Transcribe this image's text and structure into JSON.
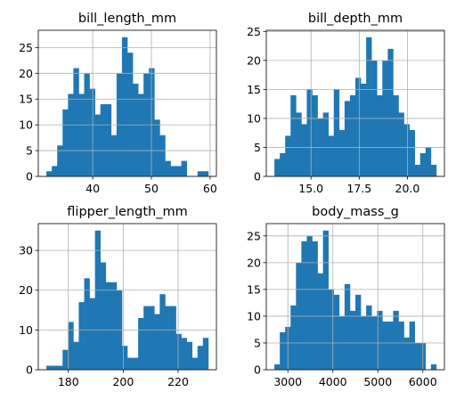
{
  "chart_data": [
    {
      "type": "bar",
      "title": "bill_length_mm",
      "bin_edges": [
        32.1,
        33.02,
        33.94,
        34.86,
        35.78,
        36.7,
        37.62,
        38.54,
        39.46,
        40.38,
        41.3,
        42.22,
        43.14,
        44.06,
        44.98,
        45.9,
        46.82,
        47.74,
        48.66,
        49.58,
        50.5,
        51.42,
        52.34,
        53.26,
        54.18,
        55.1,
        56.02,
        56.94,
        57.86,
        58.78,
        59.7
      ],
      "counts": [
        1,
        2,
        6,
        13,
        16,
        21,
        16,
        20,
        17,
        12,
        14,
        14,
        8,
        20,
        27,
        24,
        18,
        16,
        20,
        21,
        11,
        8,
        3,
        2,
        2,
        3,
        0,
        0,
        1,
        1
      ],
      "xticks": [
        40,
        50,
        60
      ],
      "yticks": [
        0,
        5,
        10,
        15,
        20,
        25
      ],
      "xlim": [
        30.72,
        61.08
      ],
      "ylim": [
        0,
        28.35
      ],
      "grid": true,
      "color": "#1f77b4"
    },
    {
      "type": "bar",
      "title": "bill_depth_mm",
      "bin_edges": [
        13.1,
        13.38,
        13.66,
        13.94,
        14.22,
        14.5,
        14.78,
        15.06,
        15.34,
        15.62,
        15.9,
        16.18,
        16.46,
        16.74,
        17.02,
        17.3,
        17.58,
        17.86,
        18.14,
        18.42,
        18.7,
        18.98,
        19.26,
        19.54,
        19.82,
        20.1,
        20.38,
        20.66,
        20.94,
        21.22,
        21.5
      ],
      "counts": [
        3,
        4,
        7,
        14,
        11,
        9,
        15,
        14,
        10,
        11,
        7,
        15,
        8,
        13,
        14,
        17,
        16,
        24,
        20,
        14,
        20,
        22,
        14,
        11,
        9,
        8,
        2,
        4,
        5,
        2
      ],
      "xticks": [
        15.0,
        17.5,
        20.0
      ],
      "yticks": [
        0,
        5,
        10,
        15,
        20,
        25
      ],
      "xlim": [
        12.68,
        21.92
      ],
      "ylim": [
        0,
        25.2
      ],
      "grid": true,
      "color": "#1f77b4"
    },
    {
      "type": "bar",
      "title": "flipper_length_mm",
      "bin_edges": [
        172.0,
        173.97,
        175.93,
        177.9,
        179.87,
        181.83,
        183.8,
        185.77,
        187.73,
        189.7,
        191.67,
        193.63,
        195.6,
        197.57,
        199.53,
        201.5,
        203.47,
        205.43,
        207.4,
        209.37,
        211.33,
        213.3,
        215.27,
        217.23,
        219.2,
        221.17,
        223.13,
        225.1,
        227.07,
        229.03,
        231.0
      ],
      "counts": [
        1,
        1,
        1,
        5,
        12,
        7,
        17,
        23,
        18,
        35,
        27,
        22,
        22,
        20,
        6,
        3,
        3,
        13,
        16,
        16,
        14,
        19,
        16,
        16,
        9,
        8,
        7,
        3,
        6,
        8
      ],
      "xticks": [
        180,
        200,
        220
      ],
      "yticks": [
        0,
        10,
        20,
        30
      ],
      "xlim": [
        169.05,
        233.95
      ],
      "ylim": [
        0,
        36.75
      ],
      "grid": true,
      "color": "#1f77b4"
    },
    {
      "type": "bar",
      "title": "body_mass_g",
      "bin_edges": [
        2700,
        2820,
        2940,
        3060,
        3180,
        3300,
        3420,
        3540,
        3660,
        3780,
        3900,
        4020,
        4140,
        4260,
        4380,
        4500,
        4620,
        4740,
        4860,
        4980,
        5100,
        5220,
        5340,
        5460,
        5580,
        5700,
        5820,
        5940,
        6060,
        6180,
        6300
      ],
      "counts": [
        1,
        7,
        8,
        12,
        20,
        24,
        25,
        24,
        18,
        26,
        15,
        14,
        10,
        16,
        11,
        14,
        10,
        12,
        10,
        11,
        9,
        9,
        11,
        9,
        6,
        9,
        5,
        5,
        0,
        1
      ],
      "xticks": [
        3000,
        4000,
        5000,
        6000
      ],
      "yticks": [
        0,
        5,
        10,
        15,
        20,
        25
      ],
      "xlim": [
        2520,
        6480
      ],
      "ylim": [
        0,
        27.3
      ],
      "grid": true,
      "color": "#1f77b4"
    }
  ]
}
